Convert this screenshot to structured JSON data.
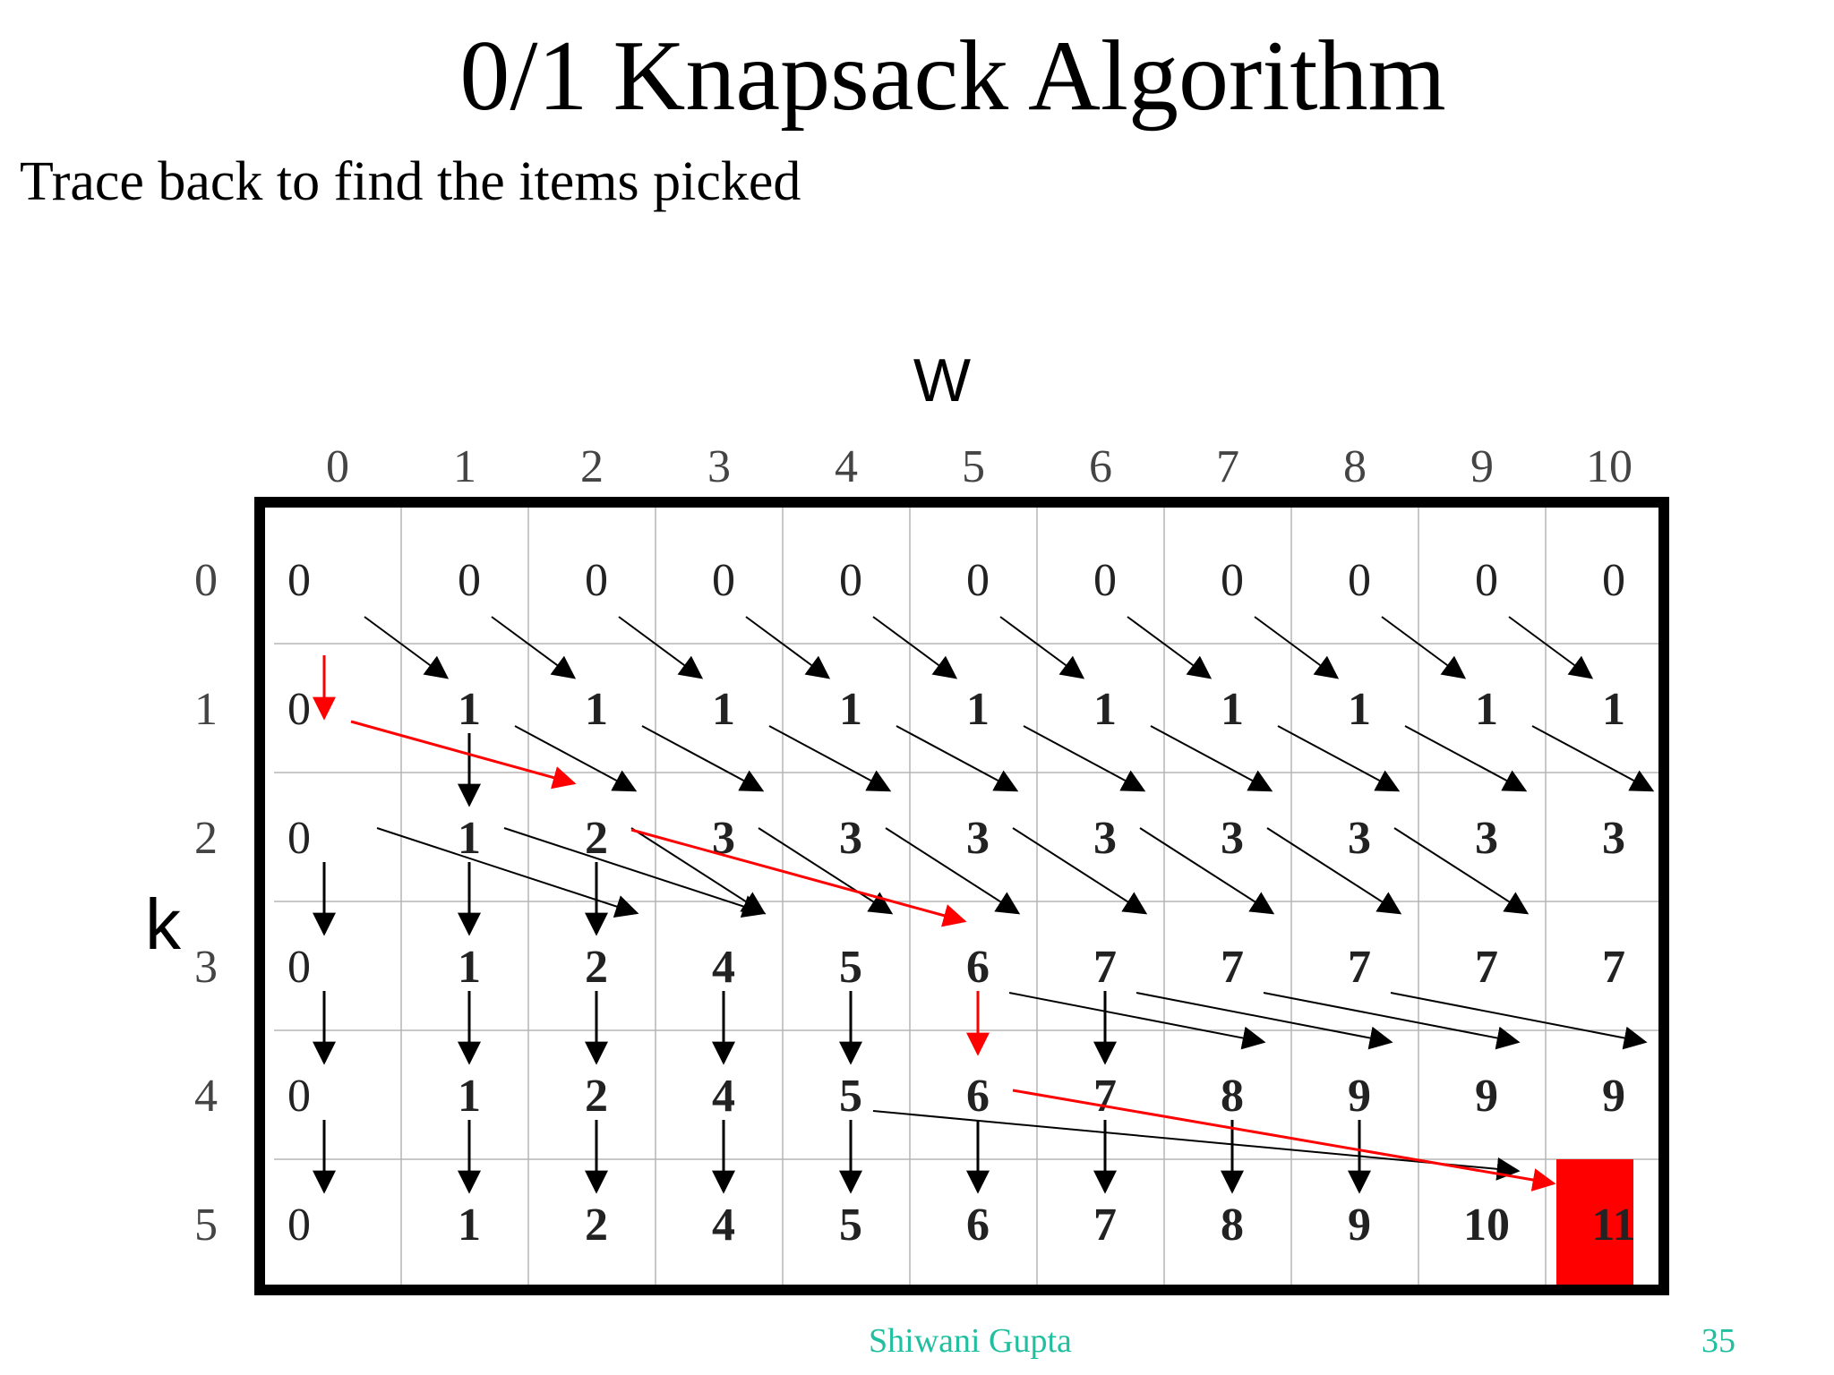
{
  "slide": {
    "title": "0/1 Knapsack Algorithm",
    "subtitle": "Trace back to find the items picked",
    "author": "Shiwani Gupta",
    "page_number": "35"
  },
  "table": {
    "column_axis_label": "W",
    "row_axis_label": "k",
    "column_headers": [
      "0",
      "1",
      "2",
      "3",
      "4",
      "5",
      "6",
      "7",
      "8",
      "9",
      "10"
    ],
    "row_headers": [
      "0",
      "1",
      "2",
      "3",
      "4",
      "5"
    ],
    "cells": [
      [
        "0",
        "0",
        "0",
        "0",
        "0",
        "0",
        "0",
        "0",
        "0",
        "0",
        "0"
      ],
      [
        "0",
        "1",
        "1",
        "1",
        "1",
        "1",
        "1",
        "1",
        "1",
        "1",
        "1"
      ],
      [
        "0",
        "1",
        "2",
        "3",
        "3",
        "3",
        "3",
        "3",
        "3",
        "3",
        "3"
      ],
      [
        "0",
        "1",
        "2",
        "4",
        "5",
        "6",
        "7",
        "7",
        "7",
        "7",
        "7"
      ],
      [
        "0",
        "1",
        "2",
        "4",
        "5",
        "6",
        "7",
        "8",
        "9",
        "9",
        "9"
      ],
      [
        "0",
        "1",
        "2",
        "4",
        "5",
        "6",
        "7",
        "8",
        "9",
        "10",
        "11"
      ]
    ],
    "highlight_cell": {
      "row": 5,
      "col": 10,
      "color": "#ff0000"
    },
    "trace_color": "#ff0000",
    "arrow_color": "#000000"
  },
  "arrows": {
    "diag_0_1": [
      [
        0,
        0
      ],
      [
        0,
        1
      ],
      [
        0,
        2
      ],
      [
        0,
        3
      ],
      [
        0,
        4
      ],
      [
        0,
        5
      ],
      [
        0,
        6
      ],
      [
        0,
        7
      ],
      [
        0,
        8
      ],
      [
        0,
        9
      ]
    ],
    "diag_1_2": [
      [
        1,
        1
      ],
      [
        1,
        2
      ],
      [
        1,
        3
      ],
      [
        1,
        4
      ],
      [
        1,
        5
      ],
      [
        1,
        6
      ],
      [
        1,
        7
      ],
      [
        1,
        8
      ],
      [
        1,
        9
      ]
    ],
    "diag_2_3": [
      [
        2,
        0
      ],
      [
        2,
        1
      ],
      [
        2,
        2
      ],
      [
        2,
        3
      ],
      [
        2,
        4
      ],
      [
        2,
        5
      ],
      [
        2,
        6
      ],
      [
        2,
        7
      ],
      [
        2,
        8
      ]
    ],
    "diag_3_4": [
      [
        3,
        5
      ],
      [
        3,
        6
      ],
      [
        3,
        7
      ],
      [
        3,
        8
      ]
    ],
    "diag_4_5": [
      [
        4,
        4
      ]
    ],
    "down": [
      [
        1,
        1
      ],
      [
        2,
        0
      ],
      [
        2,
        1
      ],
      [
        2,
        2
      ],
      [
        3,
        0
      ],
      [
        3,
        1
      ],
      [
        3,
        2
      ],
      [
        3,
        3
      ],
      [
        3,
        4
      ],
      [
        3,
        6
      ],
      [
        4,
        0
      ],
      [
        4,
        1
      ],
      [
        4,
        2
      ],
      [
        4,
        3
      ],
      [
        4,
        4
      ],
      [
        4,
        5
      ],
      [
        4,
        6
      ],
      [
        4,
        7
      ],
      [
        4,
        8
      ]
    ],
    "red_down": [
      [
        0,
        0
      ],
      [
        3,
        5
      ]
    ],
    "red_diag": [
      {
        "from": [
          1,
          0
        ],
        "to": [
          2,
          2
        ]
      },
      {
        "from": [
          2,
          2
        ],
        "to": [
          3,
          5
        ]
      },
      {
        "from": [
          4,
          5
        ],
        "to": [
          5,
          10
        ]
      }
    ]
  }
}
